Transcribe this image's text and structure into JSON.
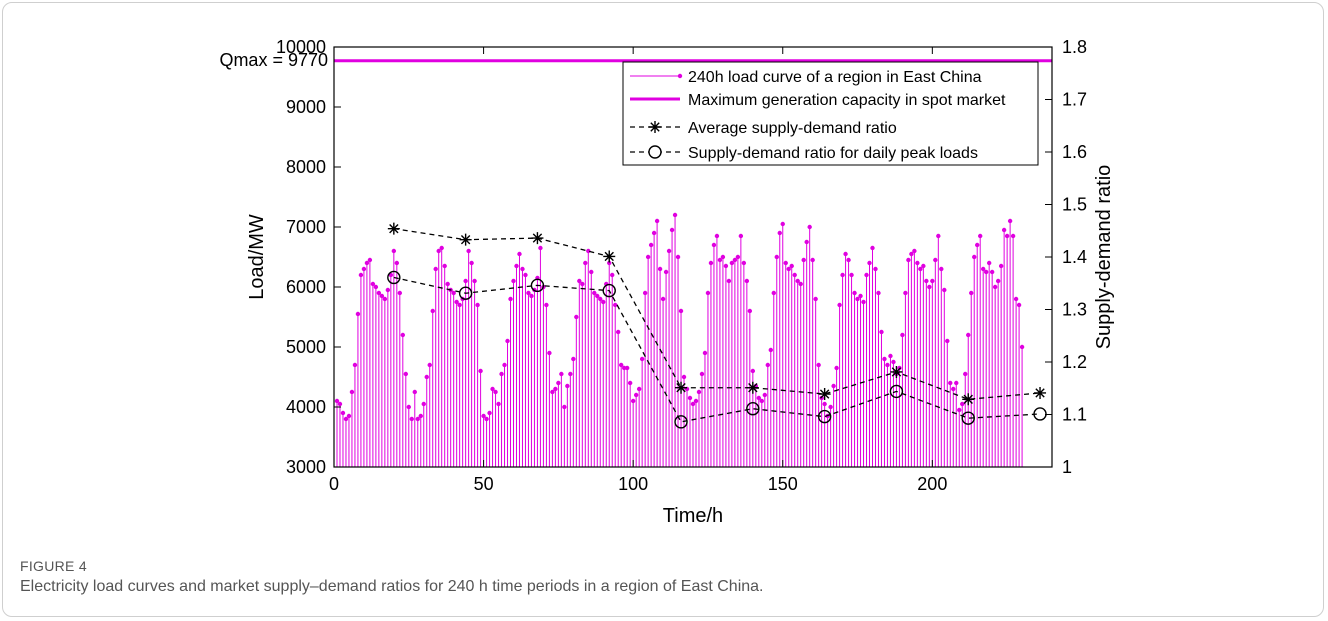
{
  "caption": {
    "label": "FIGURE 4",
    "text": "Electricity load curves and market supply–demand ratios for 240 h time periods in a region of East China."
  },
  "colors": {
    "load": "#e000e0",
    "ratio": "#000000",
    "axis": "#000000"
  },
  "chart_data": {
    "type": "line",
    "xlabel": "Time/h",
    "ylabel_left": "Load/MW",
    "ylabel_right": "Supply-demand ratio",
    "xlim": [
      0,
      240
    ],
    "ylim_left": [
      3000,
      10000
    ],
    "ylim_right": [
      1,
      1.8
    ],
    "xticks": [
      0,
      50,
      100,
      150,
      200
    ],
    "yticks_left": [
      3000,
      4000,
      5000,
      6000,
      7000,
      8000,
      9000,
      10000
    ],
    "yticks_right": [
      1,
      1.1,
      1.2,
      1.3,
      1.4,
      1.5,
      1.6,
      1.7,
      1.8
    ],
    "qmax_label": "Qmax = 9770",
    "grid": false,
    "legend_position": "top-right",
    "series": [
      {
        "name": "240h load curve of a region in East China",
        "axis": "left",
        "style": "stem",
        "x_start": 1,
        "values": [
          4100,
          4050,
          3900,
          3800,
          3850,
          4250,
          4700,
          5550,
          6200,
          6300,
          6400,
          6450,
          6050,
          6000,
          5900,
          5850,
          5800,
          5950,
          6200,
          6600,
          6400,
          5900,
          5200,
          4550,
          4000,
          3800,
          4250,
          3800,
          3850,
          4050,
          4500,
          4700,
          5600,
          6300,
          6600,
          6650,
          6350,
          6050,
          5950,
          5900,
          5750,
          5700,
          5800,
          6100,
          6600,
          6400,
          6100,
          5700,
          4600,
          3850,
          3800,
          3900,
          4300,
          4250,
          4050,
          4550,
          4700,
          5100,
          5800,
          6100,
          6350,
          6550,
          6300,
          6200,
          5900,
          5850,
          5950,
          6150,
          6650,
          6000,
          5700,
          4900,
          4250,
          4300,
          4400,
          4550,
          4000,
          4350,
          4550,
          4800,
          5500,
          6100,
          6050,
          6400,
          6600,
          6250,
          5900,
          5850,
          5800,
          5750,
          6050,
          6400,
          6200,
          5700,
          5250,
          4700,
          4650,
          4650,
          4400,
          4100,
          4200,
          4300,
          4800,
          5900,
          6500,
          6700,
          6900,
          7100,
          6300,
          5800,
          6250,
          6600,
          6950,
          7200,
          6500,
          5600,
          4500,
          4300,
          4150,
          4050,
          4100,
          4250,
          4550,
          4900,
          5900,
          6400,
          6700,
          6850,
          6450,
          6500,
          6350,
          6100,
          6400,
          6450,
          6500,
          6850,
          6400,
          6100,
          5600,
          4600,
          4350,
          4150,
          4100,
          4200,
          4700,
          4950,
          5900,
          6500,
          6900,
          7050,
          6400,
          6300,
          6350,
          6200,
          6100,
          6050,
          6450,
          6750,
          7000,
          6450,
          5800,
          4700,
          4150,
          4050,
          3850,
          4000,
          4350,
          4650,
          5700,
          6200,
          6550,
          6450,
          6200,
          5900,
          5800,
          5850,
          5750,
          6200,
          6400,
          6650,
          6300,
          5900,
          5250,
          4800,
          4700,
          4850,
          4750,
          4550,
          4650,
          5200,
          5900,
          6450,
          6550,
          6600,
          6400,
          6300,
          6350,
          6100,
          6000,
          6100,
          6450,
          6850,
          6300,
          5950,
          5100,
          4400,
          4300,
          4400,
          3950,
          4050,
          4550,
          5200,
          5900,
          6500,
          6700,
          6850,
          6300,
          6250,
          6400,
          6250,
          6000,
          6100,
          6350,
          6950,
          6850,
          7100,
          6850,
          5800,
          5700,
          5000
        ]
      },
      {
        "name": "Maximum generation capacity in spot market",
        "axis": "left",
        "style": "hline",
        "y": 9770
      },
      {
        "name": "Average supply-demand ratio",
        "axis": "right",
        "style": "dashed-star",
        "x": [
          20,
          44,
          68,
          92,
          116,
          140,
          164,
          188,
          212,
          236
        ],
        "y": [
          1.454,
          1.433,
          1.436,
          1.401,
          1.151,
          1.151,
          1.139,
          1.181,
          1.129,
          1.141
        ]
      },
      {
        "name": "Supply-demand ratio for daily peak loads",
        "axis": "right",
        "style": "dashed-circle",
        "x": [
          20,
          44,
          68,
          92,
          116,
          140,
          164,
          188,
          212,
          236
        ],
        "y": [
          1.361,
          1.331,
          1.346,
          1.336,
          1.086,
          1.111,
          1.096,
          1.144,
          1.093,
          1.101
        ]
      }
    ]
  }
}
